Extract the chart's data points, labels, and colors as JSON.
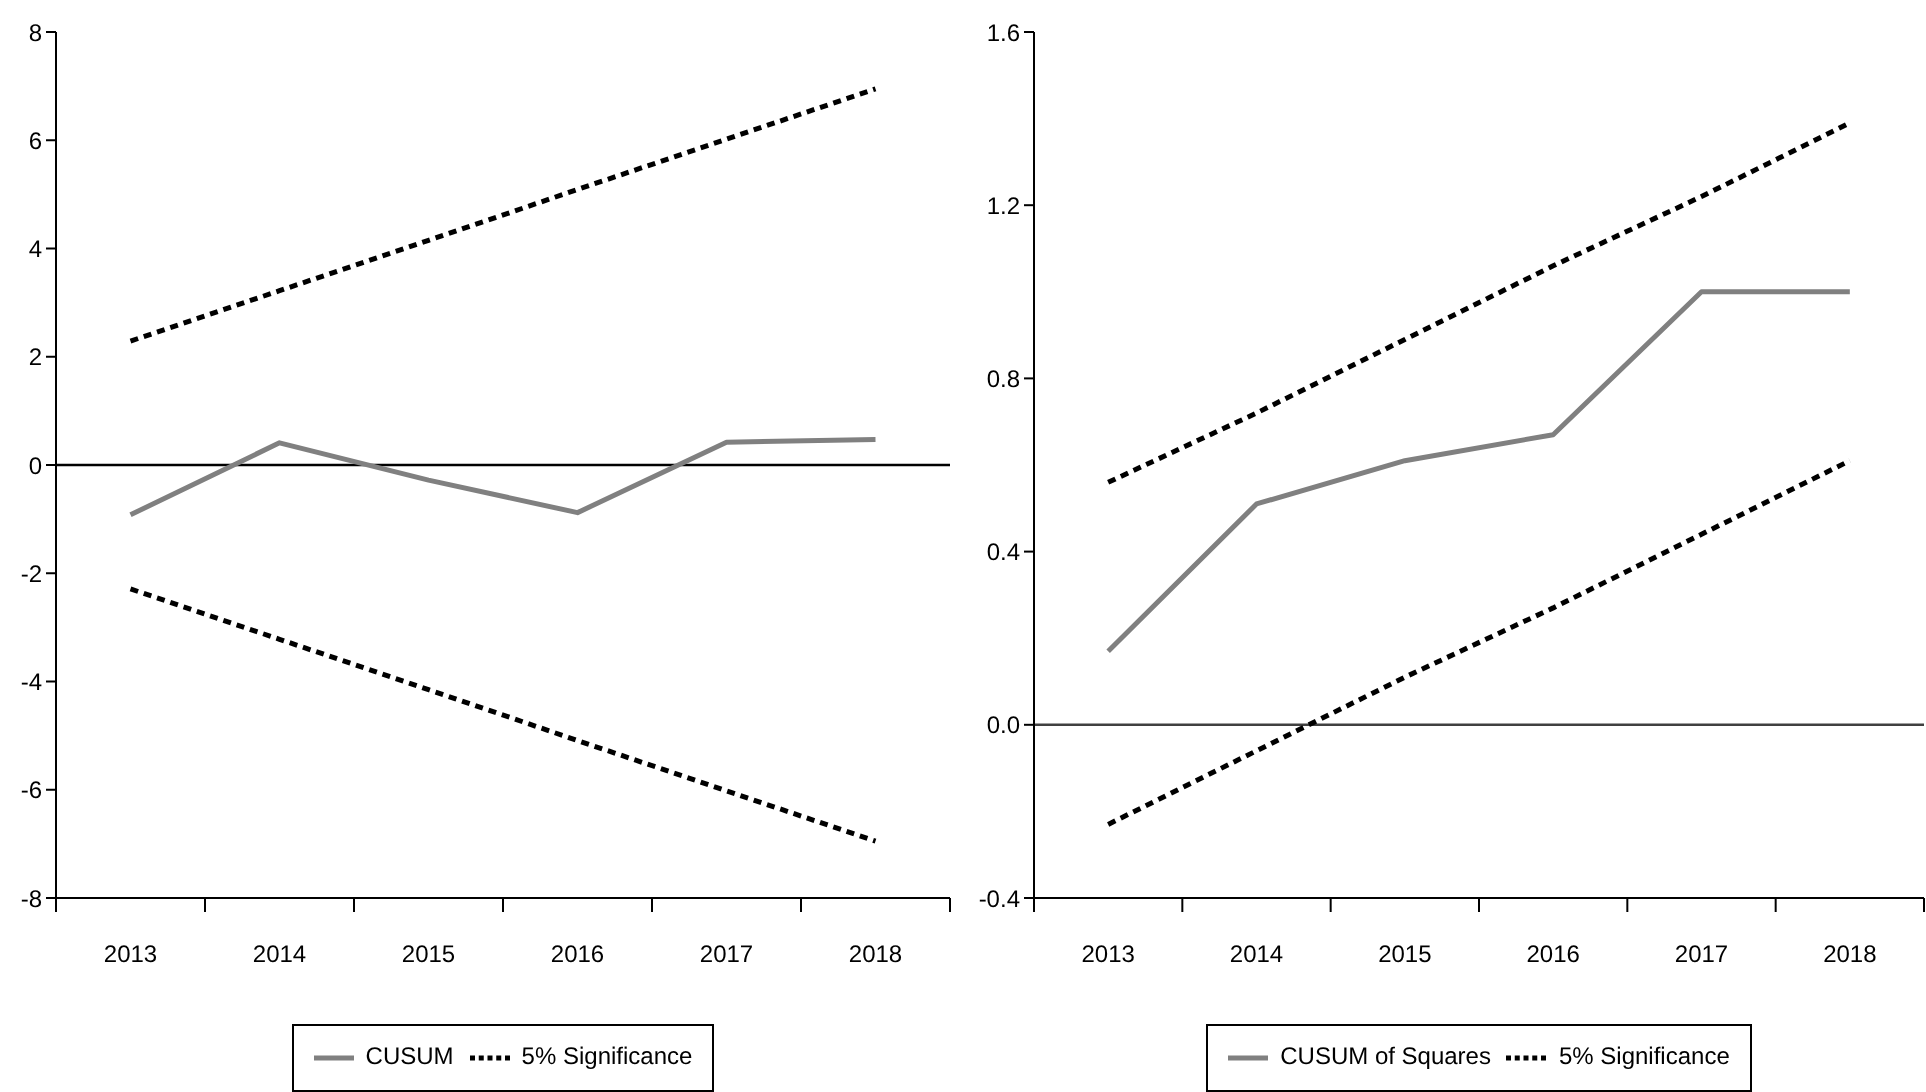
{
  "chart_data": [
    {
      "type": "line",
      "categories": [
        "2013",
        "2014",
        "2015",
        "2016",
        "2017",
        "2018"
      ],
      "series": [
        {
          "name": "CUSUM",
          "color": "#808080",
          "line_style": "solid",
          "values": [
            -0.92,
            0.41,
            -0.28,
            -0.88,
            0.42,
            0.47
          ]
        },
        {
          "name": "5% Significance",
          "color": "#000000",
          "line_style": "dashed",
          "values": [
            2.29,
            3.22,
            4.15,
            5.09,
            6.02,
            6.95
          ]
        },
        {
          "color": "#000000",
          "line_style": "dashed",
          "values": [
            -2.29,
            -3.22,
            -4.15,
            -5.09,
            -6.02,
            -6.95
          ]
        }
      ],
      "ylim": [
        -8,
        8
      ],
      "yticks": [
        -8,
        -6,
        -4,
        -2,
        0,
        2,
        4,
        6,
        8
      ],
      "ref_lines": [
        {
          "axis": "y",
          "value": 0,
          "color": "#000000"
        }
      ],
      "legend": "bottom",
      "marker": "none"
    },
    {
      "type": "line",
      "categories": [
        "2013",
        "2014",
        "2015",
        "2016",
        "2017",
        "2018"
      ],
      "series": [
        {
          "name": "CUSUM of Squares",
          "color": "#808080",
          "line_style": "solid",
          "values": [
            0.17,
            0.51,
            0.61,
            0.67,
            1.0,
            1.0
          ]
        },
        {
          "name": "5% Significance",
          "color": "#000000",
          "line_style": "dashed",
          "values": [
            0.56,
            0.72,
            0.89,
            1.06,
            1.22,
            1.39
          ]
        },
        {
          "color": "#000000",
          "line_style": "dashed",
          "values": [
            -0.23,
            -0.06,
            0.11,
            0.27,
            0.44,
            0.61
          ]
        }
      ],
      "ylim": [
        -0.4,
        1.6
      ],
      "yticks": [
        -0.4,
        {
          "value": 0,
          "label": "0.0"
        },
        0.4,
        0.8,
        1.2,
        1.6
      ],
      "ref_lines": [
        {
          "axis": "y",
          "value": 0,
          "color": "#404040"
        }
      ],
      "legend": "bottom",
      "marker": "none"
    }
  ]
}
